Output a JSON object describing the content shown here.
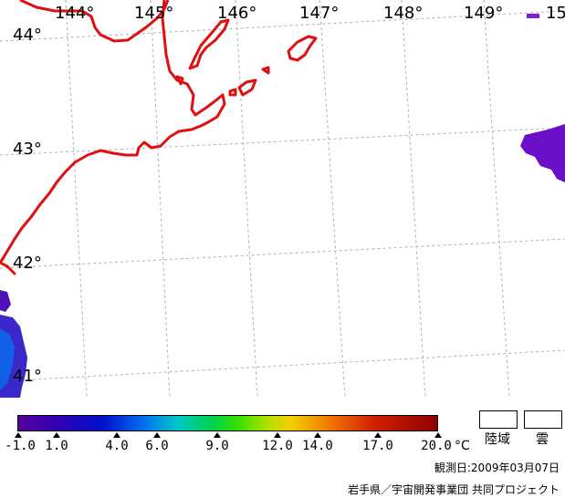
{
  "map": {
    "longitude_labels": [
      "144°",
      "145°",
      "146°",
      "147°",
      "148°",
      "149°",
      "15"
    ],
    "latitude_labels": [
      "44°",
      "43°",
      "42°",
      "41°"
    ],
    "coast_color": "#e01010",
    "grid_color": "#b0b0b0"
  },
  "colorbar": {
    "ticks": [
      "-1.0",
      "1.0",
      "4.0",
      "6.0",
      "9.0",
      "12.0",
      "14.0",
      "17.0",
      "20.0"
    ],
    "unit": "°C",
    "min": -1.0,
    "max": 20.0
  },
  "legend": {
    "land_label": "陸域",
    "cloud_label": "雲"
  },
  "footer": {
    "observation_date": "観測日:2009年03月07日",
    "credit": "岩手県／宇宙開発事業団 共同プロジェクト"
  }
}
